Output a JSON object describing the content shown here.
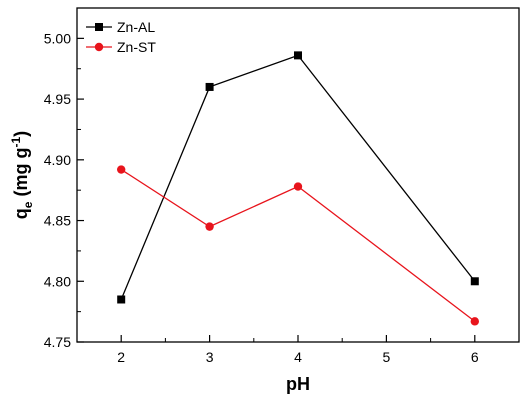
{
  "chart_data": {
    "type": "line",
    "xlabel": "pH",
    "ylabel_main": "q",
    "ylabel_sub": "e",
    "ylabel_units": "(mg g",
    "ylabel_sup": "-1",
    "ylabel_close": ")",
    "xlim": [
      1.5,
      6.5
    ],
    "ylim": [
      4.75,
      5.025
    ],
    "x_ticks": [
      2,
      3,
      4,
      5,
      6
    ],
    "y_ticks": [
      4.75,
      4.8,
      4.85,
      4.9,
      4.95,
      5.0
    ],
    "y_tick_labels": [
      "4.75",
      "4.80",
      "4.85",
      "4.90",
      "4.95",
      "5.00"
    ],
    "legend_position": "top-left",
    "grid": false,
    "series": [
      {
        "name": "Zn-AL",
        "color": "#000000",
        "marker": "square",
        "x": [
          2,
          3,
          4,
          6
        ],
        "y": [
          4.785,
          4.96,
          4.986,
          4.8
        ]
      },
      {
        "name": "Zn-ST",
        "color": "#e8141c",
        "marker": "circle",
        "x": [
          2,
          3,
          4,
          6
        ],
        "y": [
          4.892,
          4.845,
          4.878,
          4.767
        ]
      }
    ]
  }
}
